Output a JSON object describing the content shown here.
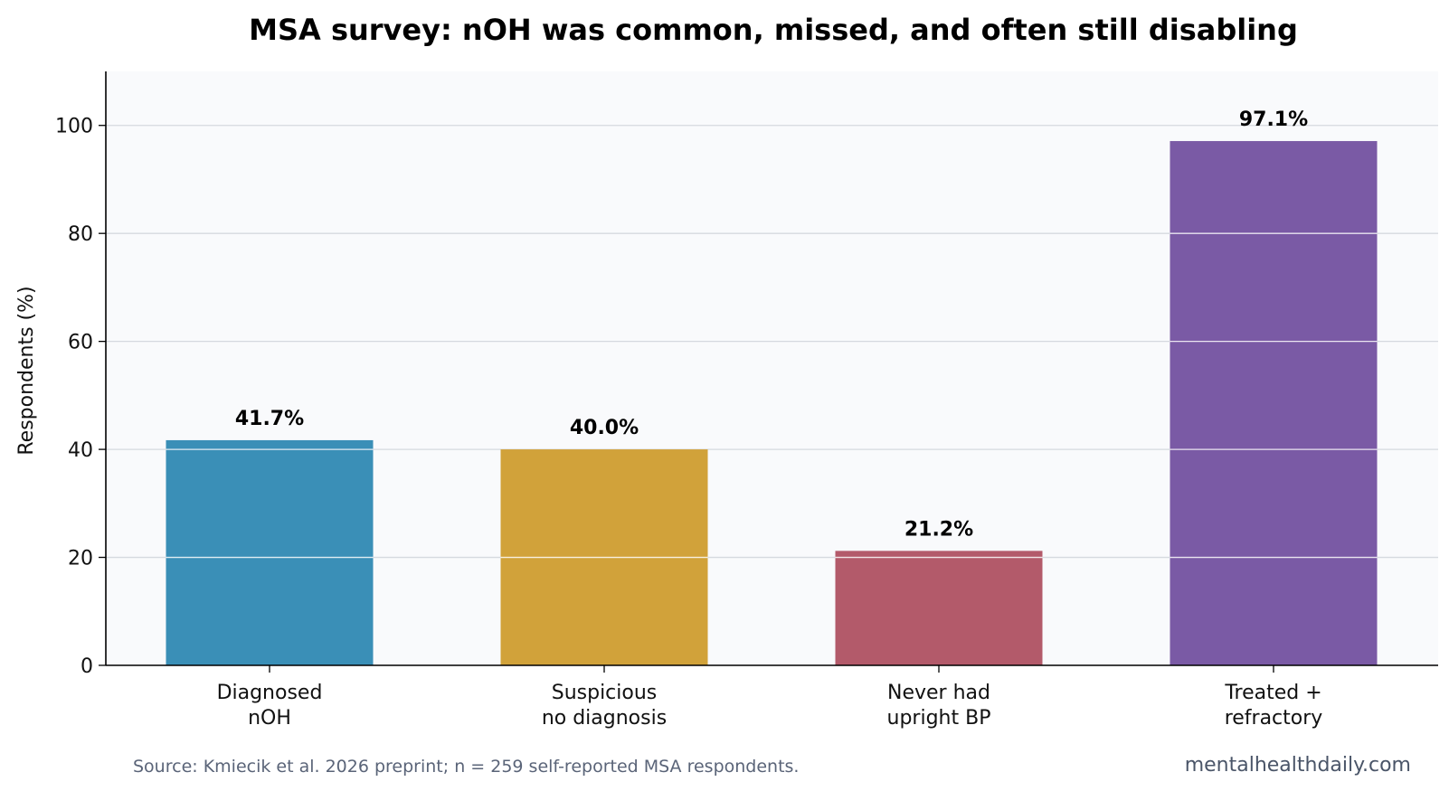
{
  "chart_data": {
    "type": "bar",
    "title": "MSA survey: nOH was common, missed, and often still disabling",
    "xlabel": "",
    "ylabel": "Respondents (%)",
    "ylim": [
      0,
      110
    ],
    "yticks": [
      "0",
      "20",
      "40",
      "60",
      "80",
      "100"
    ],
    "grid": true,
    "categories": [
      [
        "Diagnosed",
        "nOH"
      ],
      [
        "Suspicious",
        "no diagnosis"
      ],
      [
        "Never had",
        "upright BP"
      ],
      [
        "Treated +",
        "refractory"
      ]
    ],
    "values": [
      41.7,
      40.0,
      21.2,
      97.1
    ],
    "value_labels": [
      "41.7%",
      "40.0%",
      "21.2%",
      "97.1%"
    ],
    "colors": [
      "#3a8fb7",
      "#d1a23a",
      "#b35a6a",
      "#7a5aa5"
    ],
    "plot_background": "#f9fafc",
    "grid_color": "#d5d9df"
  },
  "footer": {
    "source": "Source: Kmiecik et al. 2026 preprint; n = 259 self-reported MSA respondents.",
    "site": "mentalhealthdaily.com"
  }
}
